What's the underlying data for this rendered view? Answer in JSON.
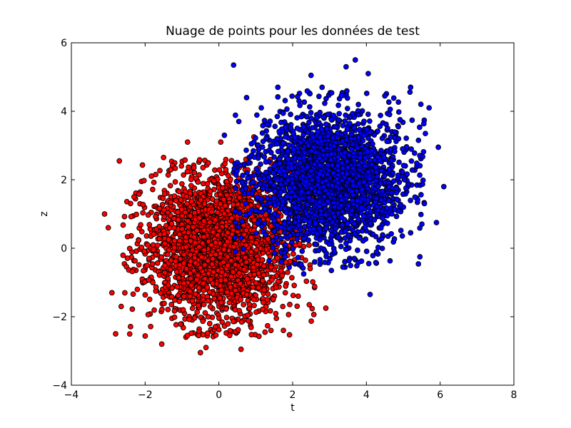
{
  "chart_data": {
    "type": "scatter",
    "title": "Nuage de points pour les données de test",
    "xlabel": "t",
    "ylabel": "z",
    "xlim": [
      -4,
      8
    ],
    "ylim": [
      -4,
      6
    ],
    "xticks": [
      -4,
      -2,
      0,
      2,
      4,
      6,
      8
    ],
    "yticks": [
      -4,
      -2,
      0,
      2,
      4,
      6
    ],
    "xtick_labels": [
      "−4",
      "−2",
      "0",
      "2",
      "4",
      "6",
      "8"
    ],
    "ytick_labels": [
      "−4",
      "−2",
      "0",
      "2",
      "4",
      "6"
    ],
    "grid": false,
    "legend": "none",
    "series": [
      {
        "color": "#ff0000",
        "center": [
          0,
          0
        ],
        "spread": [
          1.0,
          1.0
        ],
        "count": 2500,
        "points": [
          [
            -3.1,
            1.0
          ],
          [
            -2.8,
            -2.5
          ],
          [
            -2.7,
            2.55
          ],
          [
            -3.0,
            0.6
          ],
          [
            -2.9,
            -1.3
          ],
          [
            -2.65,
            -1.7
          ],
          [
            -2.3,
            1.5
          ],
          [
            -1.55,
            -2.8
          ],
          [
            -1.5,
            2.65
          ],
          [
            -0.85,
            3.1
          ],
          [
            -0.55,
            -2.55
          ],
          [
            -0.5,
            -3.05
          ],
          [
            -0.35,
            -2.9
          ],
          [
            0.05,
            3.1
          ],
          [
            0.6,
            -2.95
          ],
          [
            0.95,
            3.25
          ],
          [
            1.25,
            -2.45
          ],
          [
            1.75,
            -2.4
          ],
          [
            1.95,
            2.25
          ],
          [
            2.15,
            -1.4
          ],
          [
            2.45,
            -1.65
          ],
          [
            2.9,
            -1.75
          ],
          [
            2.35,
            1.1
          ],
          [
            2.6,
            -0.4
          ],
          [
            2.3,
            0.05
          ]
        ]
      },
      {
        "color": "#0000ff",
        "center": [
          3,
          2
        ],
        "spread": [
          1.0,
          1.0
        ],
        "count": 2500,
        "points": [
          [
            0.4,
            5.35
          ],
          [
            3.7,
            5.5
          ],
          [
            4.05,
            5.1
          ],
          [
            5.2,
            4.7
          ],
          [
            5.7,
            4.1
          ],
          [
            5.95,
            2.95
          ],
          [
            6.1,
            1.8
          ],
          [
            5.9,
            0.75
          ],
          [
            5.45,
            -0.25
          ],
          [
            4.1,
            -1.35
          ],
          [
            3.05,
            -0.65
          ],
          [
            2.3,
            -0.75
          ],
          [
            1.8,
            0.1
          ],
          [
            1.5,
            0.5
          ],
          [
            0.6,
            0.3
          ],
          [
            0.45,
            -0.1
          ],
          [
            1.0,
            1.1
          ],
          [
            0.9,
            1.6
          ],
          [
            0.15,
            3.3
          ],
          [
            0.5,
            2.5
          ],
          [
            1.15,
            4.1
          ],
          [
            1.6,
            4.7
          ],
          [
            2.5,
            5.05
          ],
          [
            3.45,
            5.3
          ],
          [
            4.5,
            4.45
          ],
          [
            5.6,
            3.35
          ],
          [
            5.2,
            0.45
          ],
          [
            2.8,
            4.7
          ],
          [
            0.95,
            3.1
          ],
          [
            1.7,
            -0.4
          ]
        ]
      }
    ]
  }
}
